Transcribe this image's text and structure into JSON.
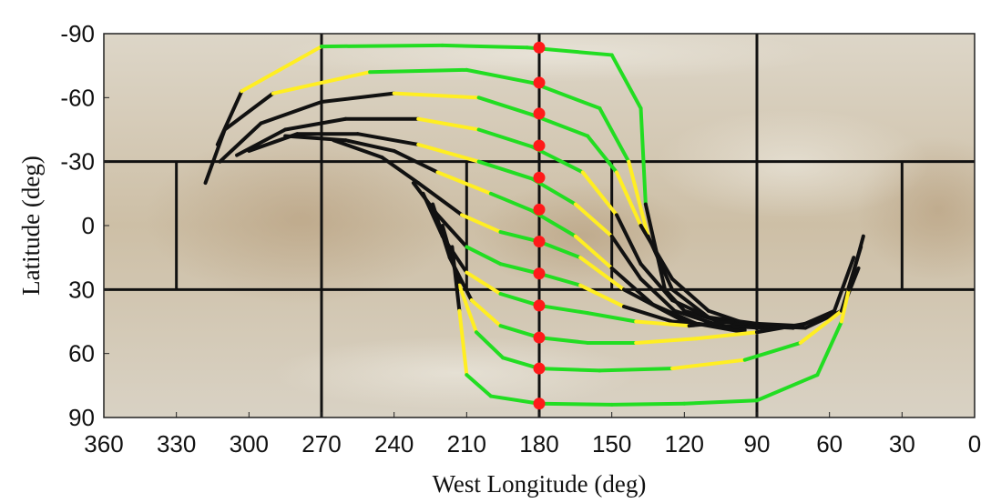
{
  "chart_data": {
    "type": "line",
    "title": "",
    "xlabel": "West Longitude (deg)",
    "ylabel": "Latitude (deg)",
    "xlim": [
      360,
      0
    ],
    "ylim": [
      -90,
      90
    ],
    "x_ticks": [
      360,
      330,
      300,
      270,
      240,
      210,
      180,
      150,
      120,
      90,
      60,
      30,
      0
    ],
    "y_ticks": [
      -90,
      -60,
      -30,
      0,
      30,
      60,
      90
    ],
    "x_tick_labels": [
      "360",
      "330",
      "300",
      "270",
      "240",
      "210",
      "180",
      "150",
      "120",
      "90",
      "60",
      "30",
      "0"
    ],
    "y_tick_labels": [
      "-90",
      "-60",
      "-30",
      "0",
      "30",
      "60",
      "90"
    ],
    "grid": false,
    "background": "surface basemap",
    "reference_lines": {
      "vertical_full": [
        270,
        180,
        90
      ],
      "horizontal_full": [
        -30,
        30
      ],
      "vertical_equatorial_band": [
        330,
        210,
        150,
        30
      ],
      "equatorial_band_lat": [
        -30,
        30
      ]
    },
    "points": {
      "name": "crossing points",
      "color": "#ff1a1a",
      "x": [
        180,
        180,
        180,
        180,
        180,
        180,
        180,
        180,
        180,
        180,
        180,
        180
      ],
      "y": [
        -83.5,
        -67,
        -52.5,
        -37.5,
        -22.5,
        -7.5,
        7.5,
        22.5,
        37.5,
        52.5,
        67,
        83.5
      ]
    },
    "curve_segment_colors": [
      "#22dd22",
      "#ffee22",
      "#111111"
    ],
    "series": [
      {
        "x": [
          313,
          303,
          270,
          220,
          185,
          150,
          138,
          136,
          128,
          120,
          105,
          88,
          70,
          55,
          47
        ],
        "y": [
          -38,
          -63,
          -84,
          -84.5,
          -83.5,
          -80,
          -55,
          -10,
          30,
          40,
          45,
          47,
          48,
          40,
          10
        ],
        "segment_colors": [
          "#111111",
          "#ffee22",
          "#22dd22",
          "#22dd22",
          "#22dd22",
          "#22dd22",
          "#22dd22",
          "#111111",
          "#111111",
          "#111111",
          "#111111",
          "#111111",
          "#111111",
          "#111111"
        ]
      },
      {
        "x": [
          318,
          310,
          290,
          250,
          210,
          183,
          155,
          143,
          135,
          125,
          110,
          90,
          72,
          58,
          50
        ],
        "y": [
          -20,
          -45,
          -62,
          -72,
          -73,
          -67,
          -55,
          -30,
          5,
          30,
          43,
          46,
          47,
          40,
          15
        ],
        "segment_colors": [
          "#111111",
          "#111111",
          "#ffee22",
          "#22dd22",
          "#22dd22",
          "#22dd22",
          "#22dd22",
          "#ffee22",
          "#111111",
          "#111111",
          "#111111",
          "#111111",
          "#111111",
          "#111111"
        ]
      },
      {
        "x": [
          312,
          295,
          270,
          240,
          205,
          183,
          160,
          148,
          138,
          125,
          110,
          92,
          75,
          60
        ],
        "y": [
          -30,
          -48,
          -58,
          -62,
          -60,
          -52,
          -42,
          -25,
          0,
          25,
          40,
          47,
          48,
          42
        ],
        "segment_colors": [
          "#111111",
          "#111111",
          "#111111",
          "#ffee22",
          "#22dd22",
          "#22dd22",
          "#22dd22",
          "#ffee22",
          "#111111",
          "#111111",
          "#111111",
          "#111111",
          "#111111"
        ]
      },
      {
        "x": [
          305,
          285,
          260,
          230,
          205,
          183,
          162,
          148,
          138,
          125,
          108,
          90,
          75
        ],
        "y": [
          -33,
          -45,
          -50,
          -50,
          -45,
          -37,
          -25,
          -5,
          18,
          35,
          44,
          48,
          47
        ],
        "segment_colors": [
          "#111111",
          "#111111",
          "#111111",
          "#ffee22",
          "#22dd22",
          "#22dd22",
          "#ffee22",
          "#111111",
          "#111111",
          "#111111",
          "#111111",
          "#111111"
        ]
      },
      {
        "x": [
          300,
          280,
          255,
          230,
          205,
          183,
          165,
          150,
          138,
          124,
          105,
          88
        ],
        "y": [
          -35,
          -43,
          -43,
          -38,
          -30,
          -22,
          -10,
          5,
          25,
          40,
          47,
          48
        ],
        "segment_colors": [
          "#111111",
          "#111111",
          "#111111",
          "#ffee22",
          "#22dd22",
          "#22dd22",
          "#ffee22",
          "#111111",
          "#111111",
          "#111111",
          "#111111"
        ]
      },
      {
        "x": [
          285,
          260,
          240,
          222,
          200,
          183,
          165,
          150,
          133,
          115,
          95
        ],
        "y": [
          -42,
          -40,
          -35,
          -25,
          -15,
          -7,
          5,
          20,
          37,
          46,
          49
        ],
        "segment_colors": [
          "#111111",
          "#111111",
          "#111111",
          "#ffee22",
          "#22dd22",
          "#22dd22",
          "#ffee22",
          "#111111",
          "#111111",
          "#111111"
        ]
      },
      {
        "x": [
          265,
          245,
          230,
          212,
          196,
          180,
          163,
          145,
          120,
          95
        ],
        "y": [
          -40,
          -32,
          -20,
          -5,
          3,
          7.5,
          15,
          30,
          45,
          50
        ],
        "segment_colors": [
          "#111111",
          "#111111",
          "#111111",
          "#ffee22",
          "#22dd22",
          "#22dd22",
          "#ffee22",
          "#111111",
          "#111111"
        ]
      },
      {
        "x": [
          232,
          222,
          210,
          196,
          180,
          163,
          145,
          125,
          105
        ],
        "y": [
          -20,
          -5,
          10,
          18,
          22.5,
          28,
          38,
          45,
          47
        ],
        "segment_colors": [
          "#111111",
          "#111111",
          "#22dd22",
          "#22dd22",
          "#22dd22",
          "#ffee22",
          "#111111",
          "#111111"
        ]
      },
      {
        "x": [
          228,
          220,
          210,
          196,
          180,
          160,
          140,
          118,
          100
        ],
        "y": [
          -15,
          5,
          22,
          32,
          37.5,
          41,
          45,
          47,
          45
        ],
        "segment_colors": [
          "#111111",
          "#111111",
          "#ffee22",
          "#22dd22",
          "#22dd22",
          "#22dd22",
          "#ffee22",
          "#111111"
        ]
      },
      {
        "x": [
          224,
          217,
          208,
          196,
          180,
          160,
          140,
          115,
          90,
          70
        ],
        "y": [
          -10,
          15,
          35,
          47,
          52.5,
          55,
          55,
          53,
          50,
          46
        ],
        "segment_colors": [
          "#111111",
          "#111111",
          "#ffee22",
          "#22dd22",
          "#22dd22",
          "#22dd22",
          "#ffee22",
          "#ffee22",
          "#111111"
        ]
      },
      {
        "x": [
          220,
          213,
          206,
          195,
          180,
          155,
          125,
          95,
          72,
          55,
          48
        ],
        "y": [
          0,
          28,
          50,
          62,
          67,
          68,
          67,
          63,
          55,
          40,
          20
        ],
        "segment_colors": [
          "#111111",
          "#ffee22",
          "#22dd22",
          "#22dd22",
          "#22dd22",
          "#22dd22",
          "#ffee22",
          "#22dd22",
          "#ffee22",
          "#111111"
        ]
      },
      {
        "x": [
          216,
          213,
          210,
          200,
          180,
          150,
          120,
          90,
          65,
          55,
          52,
          46
        ],
        "y": [
          10,
          40,
          70,
          80,
          83.5,
          84,
          83.5,
          82,
          70,
          45,
          30,
          5
        ],
        "segment_colors": [
          "#111111",
          "#ffee22",
          "#22dd22",
          "#22dd22",
          "#22dd22",
          "#22dd22",
          "#22dd22",
          "#22dd22",
          "#22dd22",
          "#ffee22",
          "#111111"
        ]
      }
    ]
  }
}
